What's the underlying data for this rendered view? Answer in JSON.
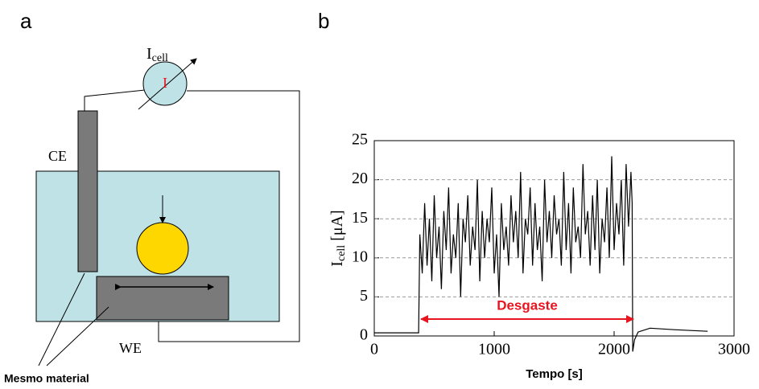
{
  "diagram": {
    "panel_a": "a",
    "meter_label": [
      "I",
      "cell"
    ],
    "meter_symbol": "I",
    "counter_electrode": "CE",
    "working_electrode": "WE",
    "note": "Mesmo material"
  },
  "chart_data": {
    "type": "line",
    "panel": "b",
    "xlabel": "Tempo [s]",
    "ylabel": [
      "I",
      "cell",
      " [μA]"
    ],
    "annotation": "Desgaste",
    "annotation_color": "#e8141e",
    "xlim": [
      0,
      3000
    ],
    "ylim": [
      0,
      25
    ],
    "xticks": [
      0,
      1000,
      2000,
      3000
    ],
    "yticks": [
      0,
      5,
      10,
      15,
      20,
      25
    ],
    "grid": true,
    "series": [
      {
        "color": "#000000",
        "x": [
          0,
          360,
          370,
          380,
          400,
          420,
          440,
          460,
          480,
          500,
          520,
          540,
          560,
          580,
          600,
          620,
          640,
          660,
          680,
          700,
          720,
          740,
          760,
          780,
          800,
          820,
          840,
          860,
          880,
          900,
          920,
          940,
          960,
          980,
          1000,
          1020,
          1040,
          1060,
          1080,
          1100,
          1120,
          1140,
          1160,
          1180,
          1200,
          1220,
          1240,
          1260,
          1280,
          1300,
          1320,
          1340,
          1360,
          1380,
          1400,
          1420,
          1440,
          1460,
          1480,
          1500,
          1520,
          1540,
          1560,
          1580,
          1600,
          1620,
          1640,
          1660,
          1680,
          1700,
          1720,
          1740,
          1760,
          1780,
          1800,
          1820,
          1840,
          1860,
          1880,
          1900,
          1920,
          1940,
          1960,
          1980,
          2000,
          2020,
          2040,
          2060,
          2080,
          2100,
          2120,
          2140,
          2150,
          2155,
          2170,
          2200,
          2300,
          2500,
          2780
        ],
        "values": [
          0.4,
          0.4,
          0.4,
          13,
          8,
          17,
          9,
          15,
          7,
          18,
          10,
          14,
          6,
          16,
          11,
          19,
          8,
          13,
          10,
          17,
          5,
          15,
          12,
          18,
          9,
          14,
          11,
          20,
          7,
          16,
          10,
          15,
          12,
          19,
          8,
          13,
          5,
          17,
          11,
          14,
          9,
          18,
          12,
          16,
          10,
          21,
          8,
          15,
          13,
          19,
          9,
          17,
          11,
          14,
          7,
          20,
          12,
          16,
          10,
          18,
          13,
          15,
          9,
          21,
          11,
          17,
          8,
          19,
          12,
          14,
          10,
          22,
          13,
          16,
          9,
          18,
          11,
          20,
          8,
          15,
          12,
          19,
          10,
          23,
          11,
          17,
          13,
          20,
          9,
          22,
          14,
          21,
          17,
          -2,
          -0.5,
          0.5,
          1,
          0.8,
          0.6
        ]
      }
    ]
  }
}
